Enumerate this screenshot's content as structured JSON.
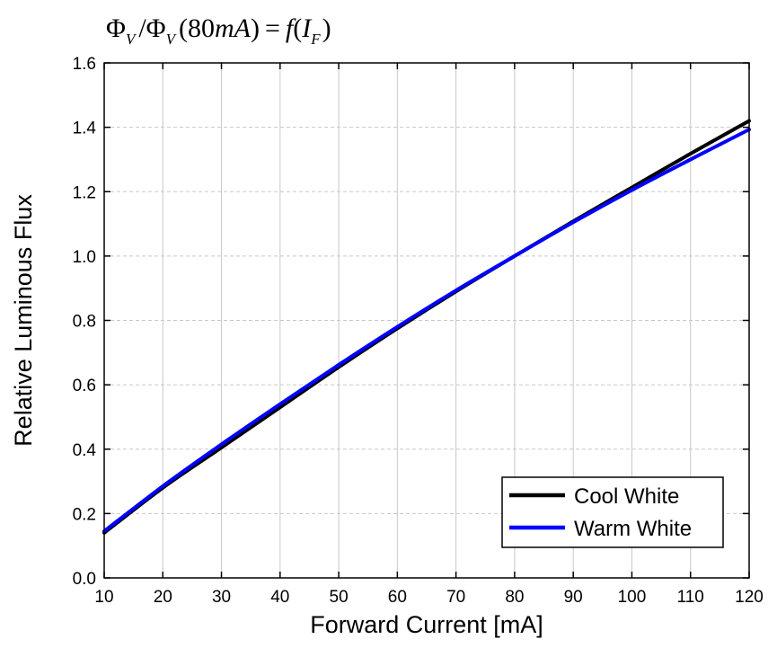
{
  "chart_data": {
    "type": "line",
    "title": "Φ_V / Φ_V (80mA) = f(I_F)",
    "title_parts": {
      "phi": "Φ",
      "sub_v": "V",
      "slash": "/",
      "arg_open": "(",
      "arg_value": "80",
      "arg_unit": "mA",
      "arg_close": ")",
      "equals": "=",
      "func": "f",
      "func_open": "(",
      "var": "I",
      "sub_f": "F",
      "func_close": ")"
    },
    "xlabel": "Forward Current [mA]",
    "ylabel": "Relative Luminous Flux",
    "xlim": [
      10,
      120
    ],
    "ylim": [
      0.0,
      1.6
    ],
    "xticks": [
      10,
      20,
      30,
      40,
      50,
      60,
      70,
      80,
      90,
      100,
      110,
      120
    ],
    "yticks": [
      "0.0",
      "0.2",
      "0.4",
      "0.6",
      "0.8",
      "1.0",
      "1.2",
      "1.4",
      "1.6"
    ],
    "grid": true,
    "legend_position": "bottom-right",
    "series": [
      {
        "name": "Cool White",
        "color": "#000000",
        "x": [
          10,
          20,
          30,
          40,
          50,
          60,
          70,
          80,
          90,
          100,
          110,
          120
        ],
        "y": [
          0.14,
          0.28,
          0.405,
          0.53,
          0.655,
          0.775,
          0.89,
          1.0,
          1.108,
          1.213,
          1.318,
          1.42
        ]
      },
      {
        "name": "Warm White",
        "color": "#0000ff",
        "x": [
          10,
          20,
          30,
          40,
          50,
          60,
          70,
          80,
          90,
          100,
          110,
          120
        ],
        "y": [
          0.145,
          0.285,
          0.415,
          0.54,
          0.662,
          0.78,
          0.893,
          1.0,
          1.105,
          1.205,
          1.3,
          1.393
        ]
      }
    ]
  }
}
